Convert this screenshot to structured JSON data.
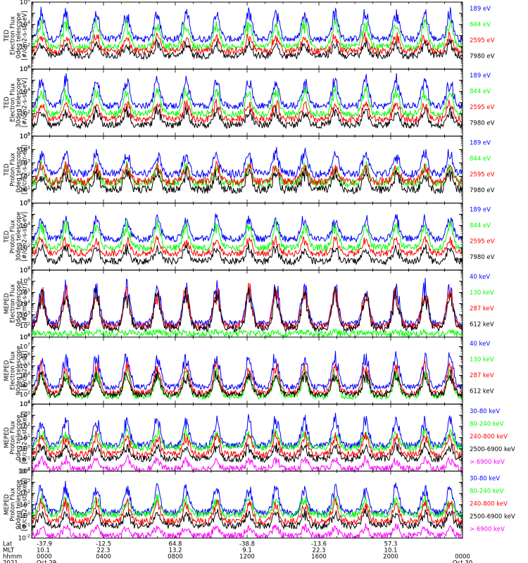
{
  "colors": {
    "black": "#000000",
    "red": "#ff0000",
    "green": "#00ff00",
    "blue": "#0000ff",
    "magenta": "#ff00ff"
  },
  "chart_data": [
    {
      "type": "line",
      "ylabel": [
        "TED",
        "Electron Flux",
        "0deg telescope",
        "[#/cm2-s-str-eV]"
      ],
      "yscale": "log",
      "ylim_exp": [
        0,
        6
      ],
      "ytick_exps": [
        0,
        2,
        4,
        6
      ],
      "series": [
        {
          "name": "7980 eV",
          "color": "black",
          "base_exp": 1.2,
          "peak_exp": 2.5
        },
        {
          "name": "2595 eV",
          "color": "red",
          "base_exp": 1.6,
          "peak_exp": 3.2
        },
        {
          "name": "844 eV",
          "color": "green",
          "base_exp": 2.0,
          "peak_exp": 4.5
        },
        {
          "name": "189 eV",
          "color": "blue",
          "base_exp": 2.7,
          "peak_exp": 5.5
        }
      ]
    },
    {
      "type": "line",
      "ylabel": [
        "TED",
        "Electron Flux",
        "30deg telescope",
        "[#/cm2-s-str-eV]"
      ],
      "yscale": "log",
      "ylim_exp": [
        0,
        6
      ],
      "ytick_exps": [
        0,
        2,
        4,
        6
      ],
      "series": [
        {
          "name": "7980 eV",
          "color": "black",
          "base_exp": 1.0,
          "peak_exp": 2.5
        },
        {
          "name": "2595 eV",
          "color": "red",
          "base_exp": 1.5,
          "peak_exp": 3.2
        },
        {
          "name": "844 eV",
          "color": "green",
          "base_exp": 2.0,
          "peak_exp": 4.5
        },
        {
          "name": "189 eV",
          "color": "blue",
          "base_exp": 2.7,
          "peak_exp": 5.5
        }
      ]
    },
    {
      "type": "line",
      "ylabel": [
        "TED",
        "Proton Flux",
        "0deg telescope",
        "[#/cm2-s-str-eV]"
      ],
      "yscale": "log",
      "ylim_exp": [
        0,
        5
      ],
      "ytick_exps": [
        0,
        1,
        2,
        3,
        4,
        5
      ],
      "series": [
        {
          "name": "7980 eV",
          "color": "black",
          "base_exp": 1.0,
          "peak_exp": 2.5
        },
        {
          "name": "2595 eV",
          "color": "red",
          "base_exp": 1.6,
          "peak_exp": 3.0
        },
        {
          "name": "844 eV",
          "color": "green",
          "base_exp": 1.5,
          "peak_exp": 3.0
        },
        {
          "name": "189 eV",
          "color": "blue",
          "base_exp": 2.2,
          "peak_exp": 4.0
        }
      ]
    },
    {
      "type": "line",
      "ylabel": [
        "TED",
        "Proton Flux",
        "30deg telescope",
        "[#/cm2-s-str-eV]"
      ],
      "yscale": "log",
      "ylim_exp": [
        0,
        6
      ],
      "ytick_exps": [
        0,
        2,
        4,
        6
      ],
      "series": [
        {
          "name": "7980 eV",
          "color": "black",
          "base_exp": 0.8,
          "peak_exp": 2.2
        },
        {
          "name": "2595 eV",
          "color": "red",
          "base_exp": 1.5,
          "peak_exp": 3.0
        },
        {
          "name": "844 eV",
          "color": "green",
          "base_exp": 2.0,
          "peak_exp": 4.5
        },
        {
          "name": "189 eV",
          "color": "blue",
          "base_exp": 2.8,
          "peak_exp": 5.0
        }
      ]
    },
    {
      "type": "line",
      "ylabel": [
        "MEPED",
        "Electron Flux",
        "0deg telescope",
        "[#/cm2-s-str]"
      ],
      "yscale": "log",
      "ylim_exp": [
        1,
        7
      ],
      "ytick_exps": [
        1,
        2,
        3,
        4,
        5,
        6,
        7
      ],
      "series": [
        {
          "name": "612 keV",
          "color": "black",
          "base_exp": 1.8,
          "peak_exp": 5.5
        },
        {
          "name": "287 keV",
          "color": "red",
          "base_exp": 2.0,
          "peak_exp": 5.8
        },
        {
          "name": "130 keV",
          "color": "green",
          "base_exp": 1.3,
          "peak_exp": 1.5
        },
        {
          "name": "40 keV",
          "color": "blue",
          "base_exp": 2.2,
          "peak_exp": 6.2
        }
      ]
    },
    {
      "type": "line",
      "ylabel": [
        "MEPED",
        "Electron Flux",
        "90deg telescope",
        "[#/cm2-s-str]"
      ],
      "yscale": "log",
      "ylim_exp": [
        1,
        8
      ],
      "ytick_exps": [
        1,
        2,
        3,
        4,
        5,
        6,
        7,
        8
      ],
      "series": [
        {
          "name": "612 keV",
          "color": "black",
          "base_exp": 2.0,
          "peak_exp": 4.5
        },
        {
          "name": "287 keV",
          "color": "red",
          "base_exp": 2.2,
          "peak_exp": 5.5
        },
        {
          "name": "130 keV",
          "color": "green",
          "base_exp": 1.8,
          "peak_exp": 4.8
        },
        {
          "name": "40 keV",
          "color": "blue",
          "base_exp": 2.8,
          "peak_exp": 6.8
        }
      ]
    },
    {
      "type": "line",
      "ylabel": [
        "MEPED",
        "Proton Flux",
        "0deg telescope",
        "[#/cm2-s-str-keV]"
      ],
      "yscale": "log",
      "ylim_exp": [
        -2,
        4
      ],
      "ytick_exps": [
        -2,
        -1,
        0,
        1,
        2,
        3,
        4
      ],
      "series": [
        {
          "name": "> 6900 keV",
          "color": "magenta",
          "base_exp": -1.8,
          "peak_exp": -0.8
        },
        {
          "name": "2500-6900 keV",
          "color": "black",
          "base_exp": -0.9,
          "peak_exp": 0.5
        },
        {
          "name": "240-800 keV",
          "color": "red",
          "base_exp": -0.5,
          "peak_exp": 1.5
        },
        {
          "name": "80-240 keV",
          "color": "green",
          "base_exp": 0.1,
          "peak_exp": 1.8
        },
        {
          "name": "30-80 keV",
          "color": "blue",
          "base_exp": 0.3,
          "peak_exp": 3.0
        }
      ]
    },
    {
      "type": "line",
      "ylabel": [
        "MEPED",
        "Proton Flux",
        "90deg telescope",
        "[#/cm2-s-str-keV]"
      ],
      "yscale": "log",
      "ylim_exp": [
        -2,
        4
      ],
      "ytick_exps": [
        -2,
        -1,
        0,
        1,
        2,
        3,
        4
      ],
      "series": [
        {
          "name": "> 6900 keV",
          "color": "magenta",
          "base_exp": -1.8,
          "peak_exp": -0.8
        },
        {
          "name": "2500-6900 keV",
          "color": "black",
          "base_exp": -0.9,
          "peak_exp": 0.5
        },
        {
          "name": "240-800 keV",
          "color": "red",
          "base_exp": -0.5,
          "peak_exp": 1.5
        },
        {
          "name": "80-240 keV",
          "color": "green",
          "base_exp": 0.1,
          "peak_exp": 1.8
        },
        {
          "name": "30-80 keV",
          "color": "blue",
          "base_exp": 0.3,
          "peak_exp": 3.0
        }
      ]
    }
  ],
  "time_axis": {
    "hours_range": [
      0,
      24
    ],
    "row_labels": [
      "Lat",
      "MLT",
      "hhmm",
      "2021"
    ],
    "ticks": [
      {
        "hour": 0,
        "lat": "-37.9",
        "mlt": "10.1",
        "hhmm": "0000",
        "date": "Oct 29"
      },
      {
        "hour": 4,
        "lat": "-12.5",
        "mlt": "22.3",
        "hhmm": "0400",
        "date": ""
      },
      {
        "hour": 8,
        "lat": "64.8",
        "mlt": "13.2",
        "hhmm": "0800",
        "date": ""
      },
      {
        "hour": 12,
        "lat": "-38.8",
        "mlt": "9.1",
        "hhmm": "1200",
        "date": ""
      },
      {
        "hour": 16,
        "lat": "-13.6",
        "mlt": "22.3",
        "hhmm": "1600",
        "date": ""
      },
      {
        "hour": 20,
        "lat": "57.3",
        "mlt": "10.1",
        "hhmm": "2000",
        "date": ""
      },
      {
        "hour": 24,
        "lat": "",
        "mlt": "",
        "hhmm": "0000",
        "date": "Oct 30"
      }
    ]
  }
}
